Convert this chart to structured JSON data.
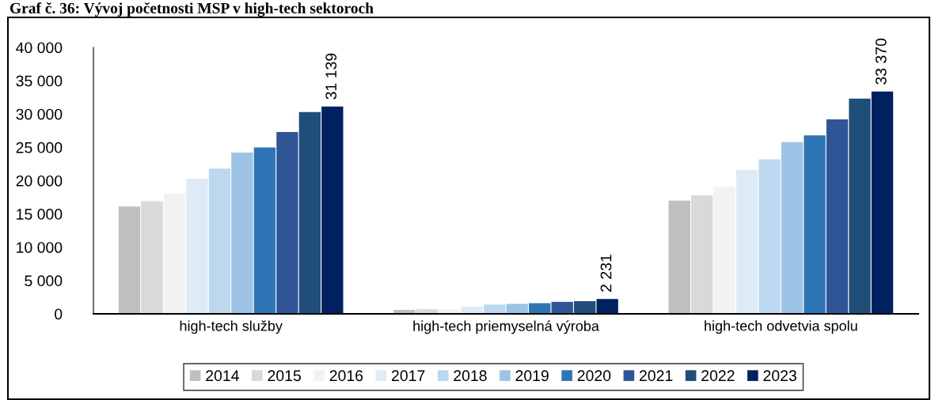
{
  "chart_data": {
    "type": "bar",
    "title": "Graf č. 36: Vývoj početnosti MSP v high-tech sektoroch",
    "categories": [
      "high-tech služby",
      "high-tech priemyselná výroba",
      "high-tech odvetvia spolu"
    ],
    "series": [
      {
        "name": "2014",
        "color": "#bfbfbf",
        "values": [
          16100,
          600,
          17000
        ]
      },
      {
        "name": "2015",
        "color": "#d9d9d9",
        "values": [
          16900,
          700,
          17800
        ]
      },
      {
        "name": "2016",
        "color": "#f2f2f2",
        "values": [
          18100,
          700,
          19100
        ]
      },
      {
        "name": "2017",
        "color": "#deebf7",
        "values": [
          20300,
          1100,
          21600
        ]
      },
      {
        "name": "2018",
        "color": "#bdd7ee",
        "values": [
          21800,
          1400,
          23200
        ]
      },
      {
        "name": "2019",
        "color": "#9dc3e6",
        "values": [
          24200,
          1500,
          25800
        ]
      },
      {
        "name": "2020",
        "color": "#2e75b6",
        "values": [
          25000,
          1600,
          26800
        ]
      },
      {
        "name": "2021",
        "color": "#2f5597",
        "values": [
          27300,
          1800,
          29200
        ]
      },
      {
        "name": "2022",
        "color": "#1f4e79",
        "values": [
          30300,
          1900,
          32300
        ]
      },
      {
        "name": "2023",
        "color": "#002060",
        "values": [
          31139,
          2231,
          33370
        ],
        "value_labels": [
          "31 139",
          "2 231",
          "33 370"
        ]
      }
    ],
    "ylim": [
      0,
      40000
    ],
    "yticks": [
      {
        "value": 0,
        "label": "0"
      },
      {
        "value": 5000,
        "label": "5 000"
      },
      {
        "value": 10000,
        "label": "10 000"
      },
      {
        "value": 15000,
        "label": "15 000"
      },
      {
        "value": 20000,
        "label": "20 000"
      },
      {
        "value": 25000,
        "label": "25 000"
      },
      {
        "value": 30000,
        "label": "30 000"
      },
      {
        "value": 35000,
        "label": "35 000"
      },
      {
        "value": 40000,
        "label": "40 000"
      }
    ],
    "grid": false,
    "legend": "bottom"
  }
}
